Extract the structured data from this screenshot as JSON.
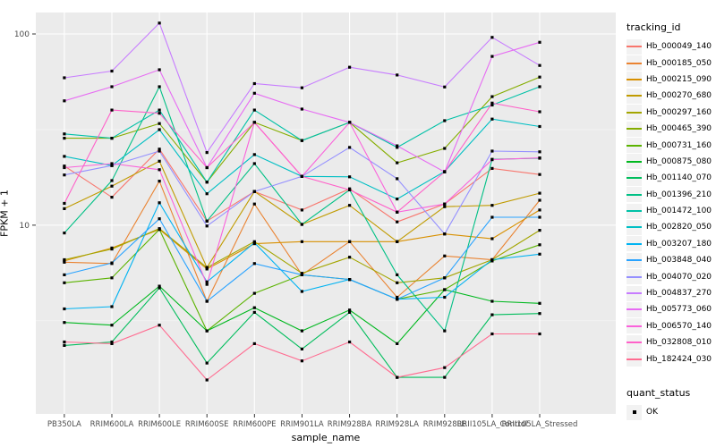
{
  "chart_data": {
    "type": "line",
    "title": "",
    "xlabel": "sample_name",
    "ylabel": "FPKM + 1",
    "x_categories": [
      "PB350LA",
      "RRIM600LA",
      "RRIM600LE",
      "RRIM600SE",
      "RRIM600PE",
      "RRIM901LA",
      "RRIM928BA",
      "RRIM928LA",
      "RRIM928LE",
      "RRII105LA_Control",
      "RRII105LA_Stressed"
    ],
    "y_scale": "log10",
    "ylim": [
      1.03,
      129.5
    ],
    "y_major_ticks": [
      10,
      100
    ],
    "y_major_tick_labels": [
      "10",
      "100"
    ],
    "y_minor_ticks": [
      3.1623,
      31.623
    ],
    "grid": true,
    "legend_position": "right",
    "legend_title": "tracking_id",
    "legend2_title": "quant_status",
    "quant_status_entries": [
      {
        "label": "OK",
        "shape": "square",
        "color": "#000000"
      }
    ],
    "point_shape": "square",
    "point_color": "#000000",
    "series": [
      {
        "name": "Hb_000049_140",
        "color": "#F8766D",
        "values": [
          20.4,
          14.0,
          25.0,
          10.5,
          15.0,
          12.0,
          15.5,
          10.4,
          12.9,
          19.8,
          18.4
        ]
      },
      {
        "name": "Hb_000185_050",
        "color": "#EA8331",
        "values": [
          6.4,
          6.3,
          17.0,
          4.0,
          12.9,
          5.5,
          8.2,
          4.2,
          6.9,
          6.6,
          13.5
        ]
      },
      {
        "name": "Hb_000215_090",
        "color": "#D89000",
        "values": [
          6.5,
          7.6,
          9.5,
          5.9,
          8.0,
          8.2,
          8.2,
          8.2,
          9.0,
          8.5,
          12.0
        ]
      },
      {
        "name": "Hb_000270_680",
        "color": "#C09B00",
        "values": [
          12.2,
          16.0,
          21.6,
          6.0,
          15.0,
          10.1,
          12.7,
          8.2,
          12.5,
          12.7,
          14.7
        ]
      },
      {
        "name": "Hb_000297_160",
        "color": "#A3A500",
        "values": [
          6.6,
          7.5,
          9.6,
          6.0,
          8.2,
          5.6,
          6.8,
          5.0,
          5.3,
          6.6,
          9.4
        ]
      },
      {
        "name": "Hb_000465_390",
        "color": "#85AD00",
        "values": [
          28.5,
          28.5,
          34.0,
          16.8,
          34.5,
          27.7,
          34.5,
          21.2,
          25.2,
          47.0,
          59.5
        ]
      },
      {
        "name": "Hb_000731_160",
        "color": "#5BB300",
        "values": [
          5.0,
          5.3,
          9.5,
          2.8,
          4.4,
          5.5,
          5.2,
          4.1,
          4.6,
          6.5,
          7.9
        ]
      },
      {
        "name": "Hb_000875_080",
        "color": "#00B81F",
        "values": [
          3.1,
          3.0,
          4.8,
          2.8,
          3.7,
          2.8,
          3.6,
          2.4,
          4.6,
          4.0,
          3.9
        ]
      },
      {
        "name": "Hb_001140_070",
        "color": "#00BD5C",
        "values": [
          2.35,
          2.45,
          4.7,
          1.9,
          3.5,
          2.25,
          3.5,
          1.6,
          1.6,
          3.4,
          3.45
        ]
      },
      {
        "name": "Hb_001396_210",
        "color": "#00C085",
        "values": [
          9.1,
          17.1,
          53.0,
          10.5,
          21.0,
          10.1,
          15.3,
          5.5,
          2.8,
          22.1,
          22.4
        ]
      },
      {
        "name": "Hb_001472_100",
        "color": "#00C1A7",
        "values": [
          30.0,
          28.5,
          40.0,
          16.8,
          40.0,
          27.7,
          34.5,
          25.5,
          35.2,
          42.5,
          53.0
        ]
      },
      {
        "name": "Hb_002820_050",
        "color": "#00BFC4",
        "values": [
          22.9,
          20.5,
          31.6,
          14.6,
          23.4,
          18.0,
          17.9,
          13.7,
          19.1,
          35.9,
          32.8
        ]
      },
      {
        "name": "Hb_003207_180",
        "color": "#00B3F2",
        "values": [
          3.65,
          3.75,
          13.1,
          5.05,
          8.1,
          4.5,
          5.2,
          4.1,
          4.2,
          6.6,
          7.05
        ]
      },
      {
        "name": "Hb_003848_040",
        "color": "#29A3FF",
        "values": [
          5.5,
          6.35,
          10.8,
          4.0,
          6.3,
          5.5,
          5.2,
          4.1,
          5.3,
          11.0,
          11.0
        ]
      },
      {
        "name": "Hb_004070_020",
        "color": "#9590FF",
        "values": [
          18.3,
          20.5,
          24.4,
          9.9,
          15.0,
          18.0,
          25.5,
          17.5,
          9.0,
          24.4,
          24.2
        ]
      },
      {
        "name": "Hb_004837_270",
        "color": "#C77CFF",
        "values": [
          59.0,
          64.0,
          114.0,
          24.0,
          55.0,
          52.3,
          67.0,
          61.0,
          52.8,
          96.0,
          68.5
        ]
      },
      {
        "name": "Hb_005773_060",
        "color": "#E76BF3",
        "values": [
          44.7,
          53.0,
          65.0,
          20.0,
          49.0,
          40.5,
          34.5,
          26.0,
          19.0,
          76.3,
          90.5
        ]
      },
      {
        "name": "Hb_006570_140",
        "color": "#FA62DB",
        "values": [
          20.0,
          21.0,
          19.5,
          4.9,
          34.5,
          18.0,
          34.5,
          11.7,
          12.9,
          22.0,
          22.5
        ]
      },
      {
        "name": "Hb_032808_010",
        "color": "#FF61C9",
        "values": [
          13.0,
          40.0,
          38.5,
          20.0,
          34.5,
          18.0,
          15.3,
          11.7,
          19.0,
          43.5,
          39.2
        ]
      },
      {
        "name": "Hb_182424_030",
        "color": "#FF6C91",
        "values": [
          2.45,
          2.4,
          3.0,
          1.55,
          2.4,
          1.95,
          2.45,
          1.6,
          1.8,
          2.7,
          2.7
        ]
      }
    ]
  },
  "style": {
    "panel_bg": "#EBEBEB",
    "grid_major": "#FFFFFF",
    "grid_minor": "#F7F7F7",
    "axis_text": "#4D4D4D",
    "tick_mark": "#333333",
    "legend_key_bg": "#F2F2F2"
  }
}
